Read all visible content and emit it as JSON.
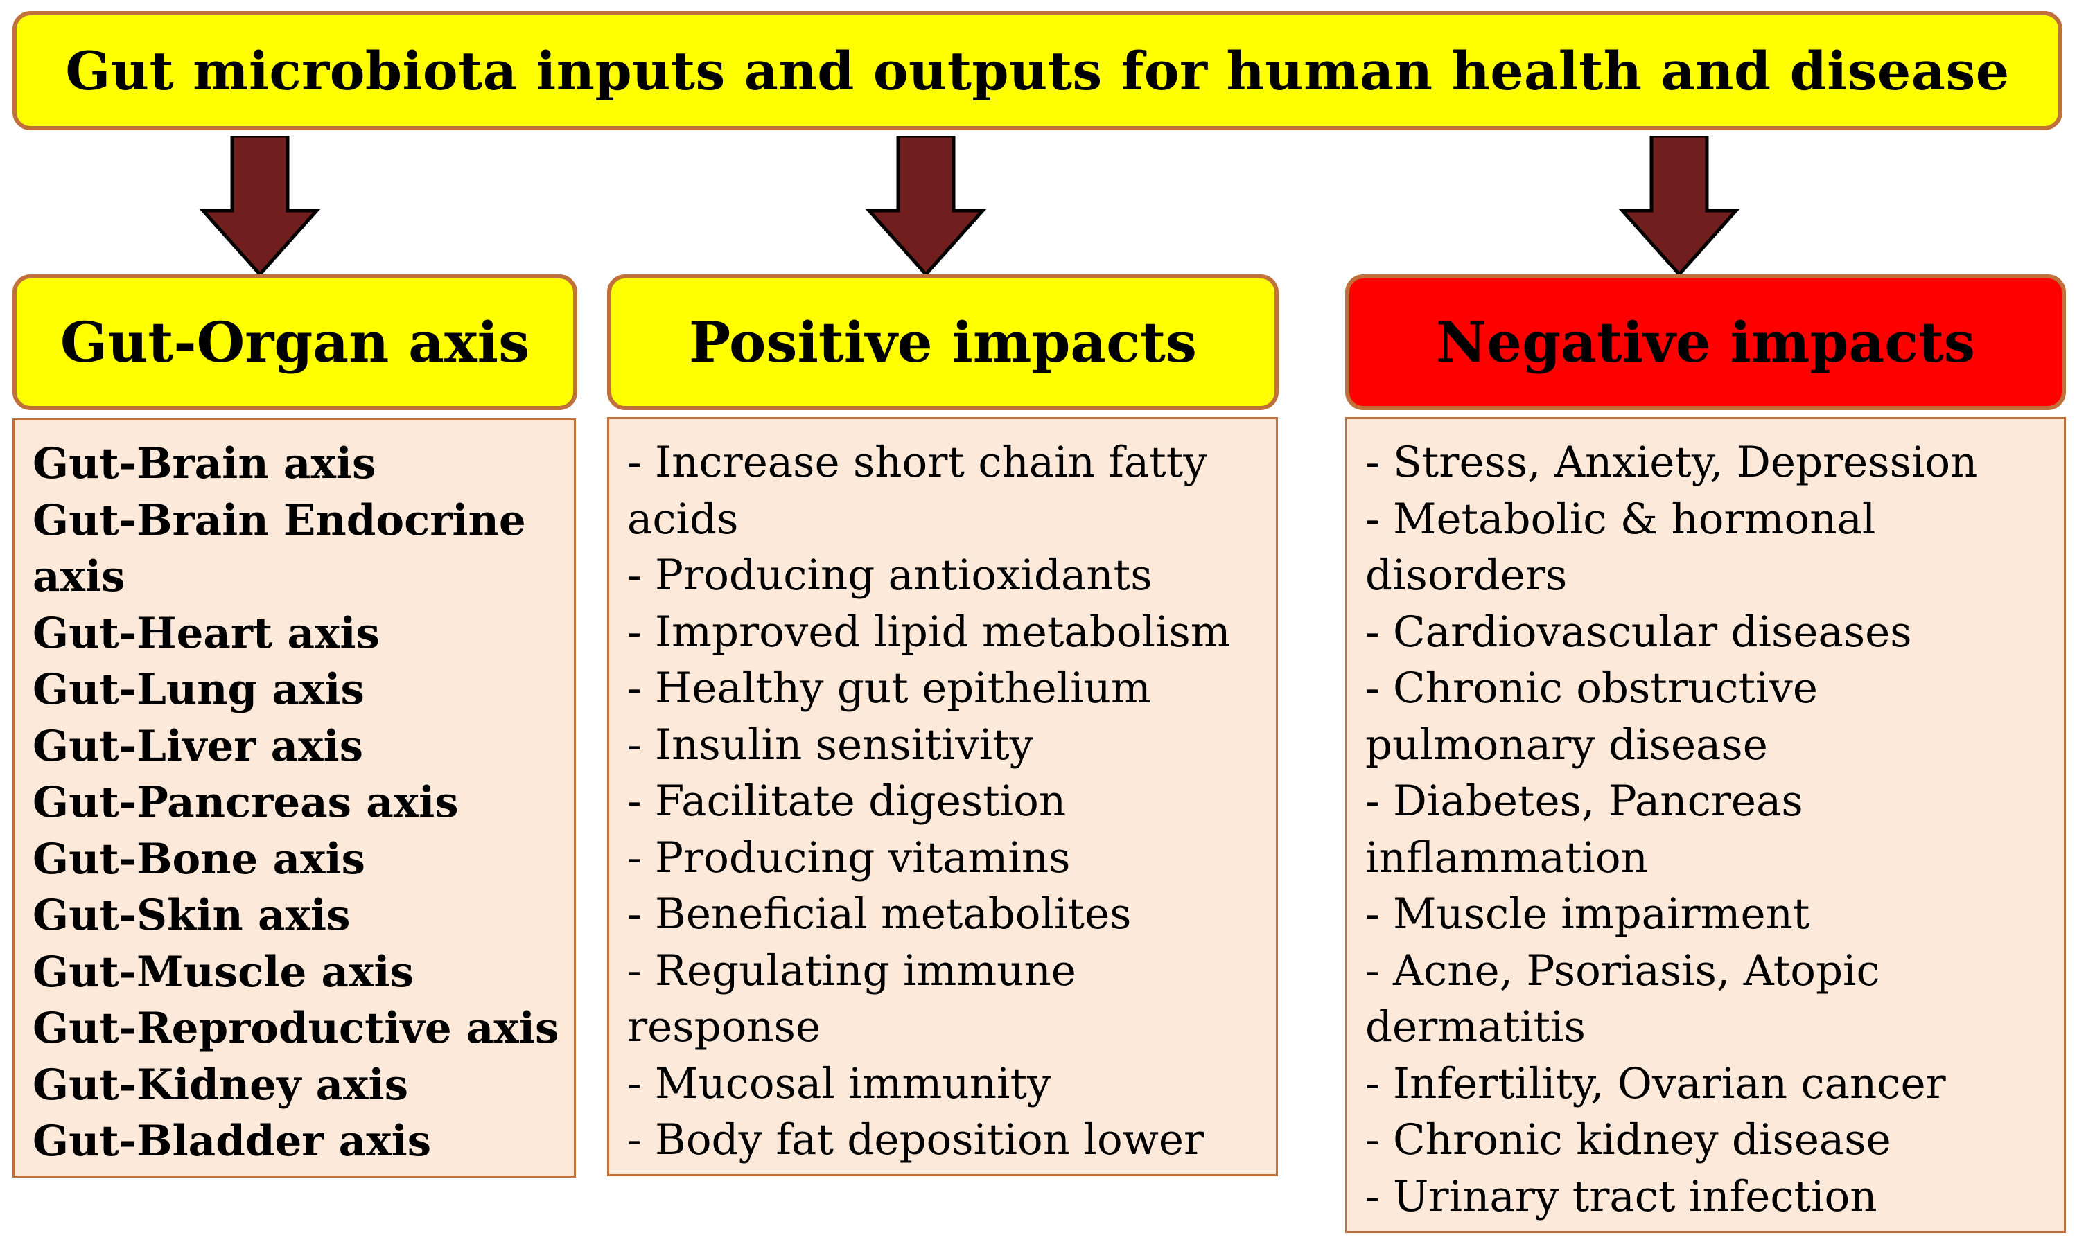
{
  "title": "Gut microbiota inputs and outputs for human health and disease",
  "colors": {
    "yellow": "#FFFF00",
    "red": "#FF0000",
    "box_border": "#C0713B",
    "list_fill": "#FDE9D9",
    "arrow_fill": "#701E1E"
  },
  "columns": [
    {
      "heading": "Gut-Organ axis",
      "lines": [
        "Gut-Brain axis",
        "Gut-Brain Endocrine",
        "axis",
        "Gut-Heart axis",
        "Gut-Lung axis",
        "Gut-Liver axis",
        "Gut-Pancreas axis",
        "Gut-Bone axis",
        "Gut-Skin axis",
        "Gut-Muscle axis",
        "Gut-Reproductive axis",
        "Gut-Kidney axis",
        "Gut-Bladder axis"
      ]
    },
    {
      "heading": "Positive impacts",
      "lines": [
        "- Increase short chain fatty",
        "acids",
        "- Producing antioxidants",
        "- Improved lipid metabolism",
        "- Healthy gut epithelium",
        "- Insulin sensitivity",
        "- Facilitate digestion",
        "- Producing vitamins",
        "- Beneficial metabolites",
        "- Regulating immune",
        "response",
        "- Mucosal immunity",
        "- Body fat deposition lower"
      ]
    },
    {
      "heading": "Negative impacts",
      "lines": [
        "- Stress, Anxiety, Depression",
        "- Metabolic & hormonal",
        "disorders",
        "- Cardiovascular diseases",
        "- Chronic obstructive",
        "pulmonary disease",
        "- Diabetes, Pancreas",
        "inflammation",
        "- Muscle impairment",
        "- Acne, Psoriasis, Atopic",
        "dermatitis",
        "- Infertility, Ovarian cancer",
        "- Chronic kidney disease",
        "- Urinary tract infection"
      ]
    }
  ]
}
